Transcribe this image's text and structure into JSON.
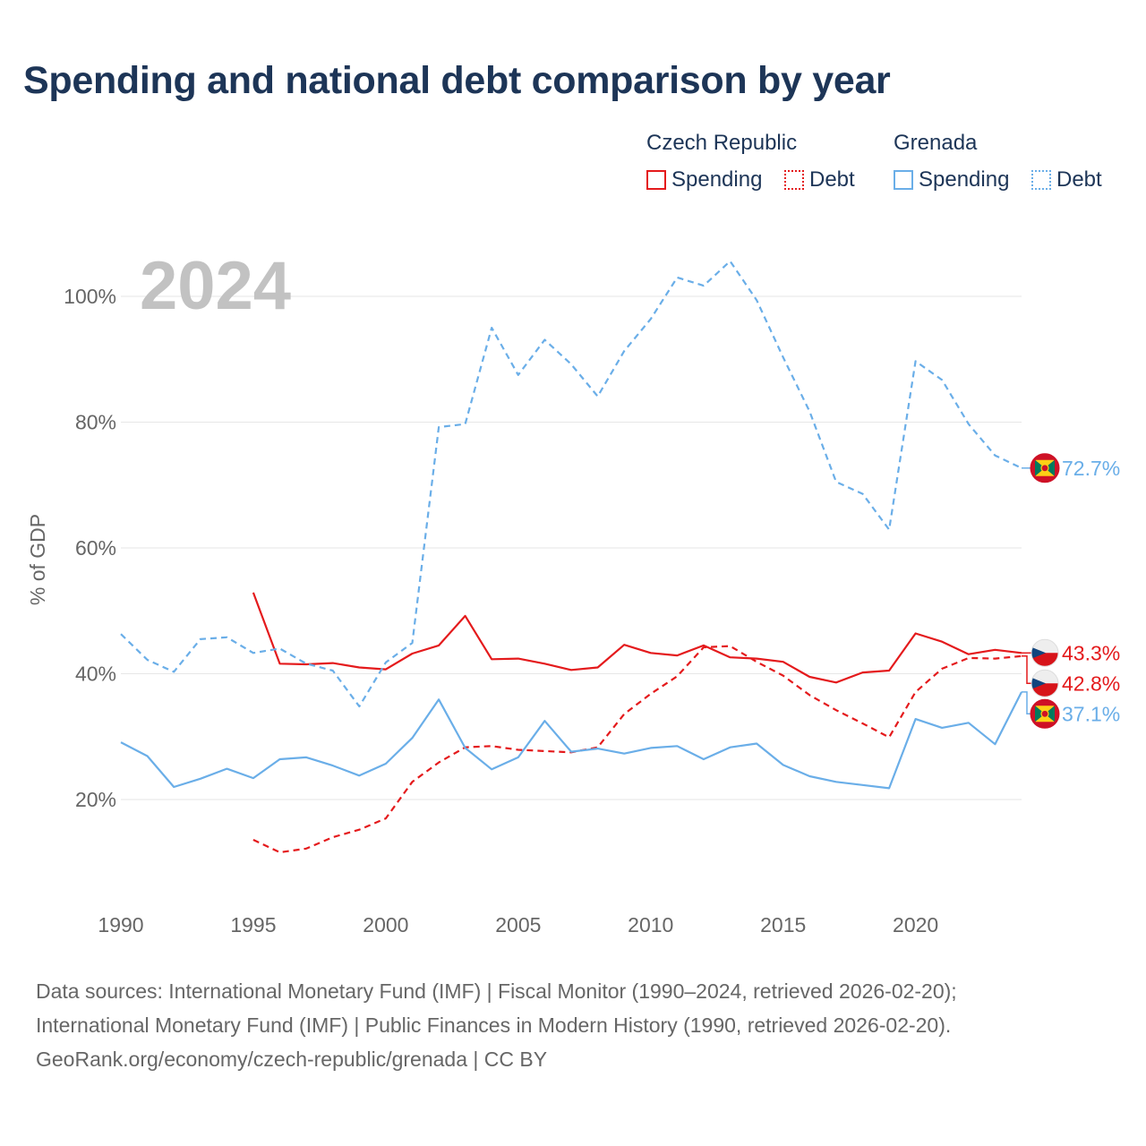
{
  "title": "Spending and national debt comparison by year",
  "legend": {
    "groups": [
      {
        "country": "Czech Republic",
        "items": [
          {
            "label": "Spending"
          },
          {
            "label": "Debt"
          }
        ]
      },
      {
        "country": "Grenada",
        "items": [
          {
            "label": "Spending"
          },
          {
            "label": "Debt"
          }
        ]
      }
    ]
  },
  "colors": {
    "czech": "#e41a1c",
    "grenada": "#6aaee8",
    "grid": "#e6e6e6",
    "year_watermark": "#c2c2c2"
  },
  "chart_data": {
    "type": "line",
    "title": "Spending and national debt comparison by year",
    "year_label": "2024",
    "ylabel": "% of GDP",
    "xlabel": "",
    "xlim": [
      1990,
      2024
    ],
    "ylim": [
      5,
      110
    ],
    "x_ticks": [
      1990,
      1995,
      2000,
      2005,
      2010,
      2015,
      2020
    ],
    "y_ticks": [
      20,
      40,
      60,
      80,
      100
    ],
    "y_tick_labels": [
      "20%",
      "40%",
      "60%",
      "80%",
      "100%"
    ],
    "series": [
      {
        "name": "Czech Republic Spending",
        "country": "Czech Republic",
        "metric": "Spending",
        "color": "#e41a1c",
        "dashed": false,
        "end_label": "43.3%",
        "flag": "czech-flag-icon",
        "x": [
          1995,
          1996,
          1997,
          1998,
          1999,
          2000,
          2001,
          2002,
          2003,
          2004,
          2005,
          2006,
          2007,
          2008,
          2009,
          2010,
          2011,
          2012,
          2013,
          2014,
          2015,
          2016,
          2017,
          2018,
          2019,
          2020,
          2021,
          2022,
          2023,
          2024
        ],
        "values": [
          52.9,
          41.6,
          41.5,
          41.7,
          41.0,
          40.7,
          43.2,
          44.5,
          49.2,
          42.3,
          42.4,
          41.6,
          40.6,
          41.0,
          44.6,
          43.3,
          42.9,
          44.5,
          42.6,
          42.4,
          41.9,
          39.5,
          38.6,
          40.2,
          40.5,
          46.4,
          45.1,
          43.1,
          43.8,
          43.3
        ]
      },
      {
        "name": "Czech Republic Debt",
        "country": "Czech Republic",
        "metric": "Debt",
        "color": "#e41a1c",
        "dashed": true,
        "end_label": "42.8%",
        "flag": "czech-flag-icon",
        "x": [
          1995,
          1996,
          1997,
          1998,
          1999,
          2000,
          2001,
          2002,
          2003,
          2004,
          2005,
          2006,
          2007,
          2008,
          2009,
          2010,
          2011,
          2012,
          2013,
          2014,
          2015,
          2016,
          2017,
          2018,
          2019,
          2020,
          2021,
          2022,
          2023,
          2024
        ],
        "values": [
          13.6,
          11.6,
          12.2,
          14.0,
          15.2,
          17.0,
          22.8,
          25.9,
          28.3,
          28.5,
          27.9,
          27.7,
          27.5,
          28.3,
          33.6,
          36.8,
          39.6,
          44.2,
          44.4,
          41.9,
          39.7,
          36.6,
          34.2,
          32.1,
          29.9,
          37.1,
          40.8,
          42.5,
          42.4,
          42.8
        ]
      },
      {
        "name": "Grenada Spending",
        "country": "Grenada",
        "metric": "Spending",
        "color": "#6aaee8",
        "dashed": false,
        "end_label": "37.1%",
        "flag": "grenada-flag-icon",
        "x": [
          1990,
          1991,
          1992,
          1993,
          1994,
          1995,
          1996,
          1997,
          1998,
          1999,
          2000,
          2001,
          2002,
          2003,
          2004,
          2005,
          2006,
          2007,
          2008,
          2009,
          2010,
          2011,
          2012,
          2013,
          2014,
          2015,
          2016,
          2017,
          2018,
          2019,
          2020,
          2021,
          2022,
          2023,
          2024
        ],
        "values": [
          29.1,
          26.9,
          22.0,
          23.3,
          24.9,
          23.4,
          26.4,
          26.7,
          25.4,
          23.8,
          25.7,
          29.8,
          35.9,
          28.2,
          24.8,
          26.7,
          32.5,
          27.6,
          28.1,
          27.3,
          28.2,
          28.5,
          26.4,
          28.3,
          28.9,
          25.5,
          23.7,
          22.8,
          22.3,
          21.8,
          32.8,
          31.4,
          32.2,
          28.8,
          37.1
        ]
      },
      {
        "name": "Grenada Debt",
        "country": "Grenada",
        "metric": "Debt",
        "color": "#6aaee8",
        "dashed": true,
        "end_label": "72.7%",
        "flag": "grenada-flag-icon",
        "x": [
          1990,
          1991,
          1992,
          1993,
          1994,
          1995,
          1996,
          1997,
          1998,
          1999,
          2000,
          2001,
          2002,
          2003,
          2004,
          2005,
          2006,
          2007,
          2008,
          2009,
          2010,
          2011,
          2012,
          2013,
          2014,
          2015,
          2016,
          2017,
          2018,
          2019,
          2020,
          2021,
          2022,
          2023,
          2024
        ],
        "values": [
          46.3,
          42.2,
          40.3,
          45.5,
          45.8,
          43.3,
          44.0,
          41.6,
          40.5,
          34.8,
          41.8,
          44.9,
          79.2,
          79.7,
          95.0,
          87.5,
          93.1,
          89.2,
          84.1,
          91.3,
          96.4,
          103.0,
          101.7,
          105.6,
          99.4,
          90.3,
          81.7,
          70.5,
          68.6,
          62.9,
          89.7,
          86.7,
          79.7,
          74.7,
          72.7
        ]
      }
    ]
  },
  "footer": {
    "line1": "Data sources: International Monetary Fund (IMF) | Fiscal Monitor (1990–2024, retrieved 2026-02-20);",
    "line2": "International Monetary Fund (IMF) | Public Finances in Modern History (1990, retrieved 2026-02-20).",
    "line3": "GeoRank.org/economy/czech-republic/grenada | CC BY"
  }
}
